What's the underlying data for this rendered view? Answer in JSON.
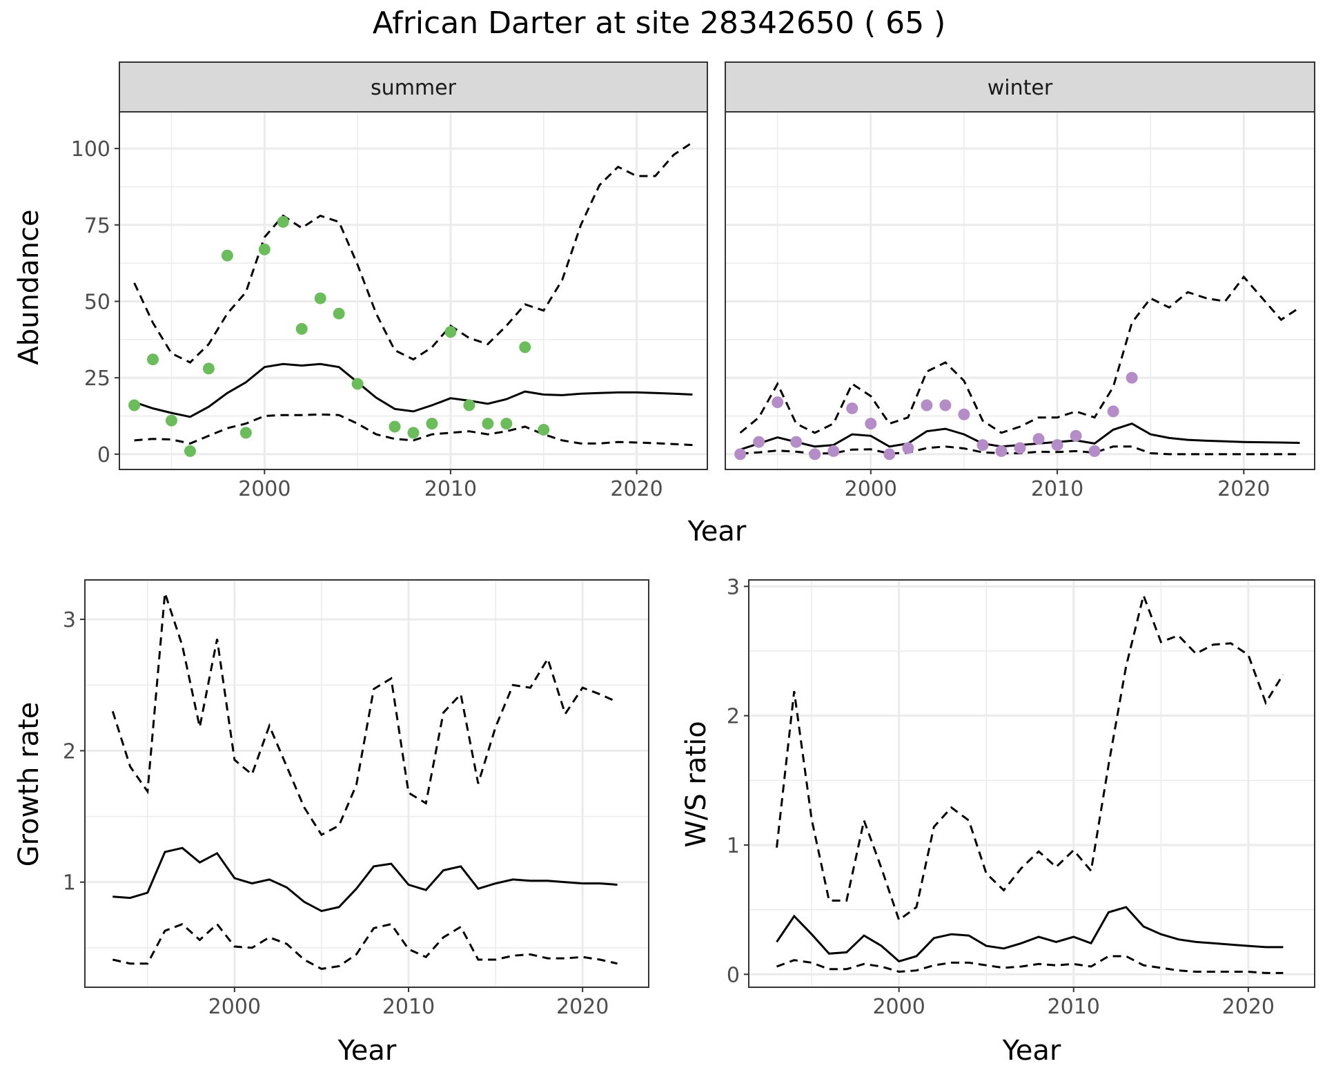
{
  "figure": {
    "title": "African Darter at site 28342650 ( 65 )",
    "colors": {
      "summer_points": "#6abd5a",
      "winter_points": "#b48cc8",
      "lines": "#000000",
      "grid": "#ebebeb",
      "strip_fill": "#d9d9d9",
      "panel_border": "#333333"
    }
  },
  "chart_data": [
    {
      "id": "abundance",
      "type": "line+scatter",
      "facets": [
        "summer",
        "winter"
      ],
      "xlabel": "Year",
      "ylabel": "Abundance",
      "xlim": [
        1992.2,
        2023.8
      ],
      "ylim": [
        -5,
        112
      ],
      "xticks": [
        2000,
        2010,
        2020
      ],
      "yticks": [
        0,
        25,
        50,
        75,
        100
      ],
      "grid": true,
      "x": [
        1993,
        1994,
        1995,
        1996,
        1997,
        1998,
        1999,
        2000,
        2001,
        2002,
        2003,
        2004,
        2005,
        2006,
        2007,
        2008,
        2009,
        2010,
        2011,
        2012,
        2013,
        2014,
        2015,
        2016,
        2017,
        2018,
        2019,
        2020,
        2021,
        2022,
        2023
      ],
      "panels": [
        {
          "facet": "summer",
          "observed": [
            {
              "x": 1993,
              "y": 16
            },
            {
              "x": 1994,
              "y": 31
            },
            {
              "x": 1995,
              "y": 11
            },
            {
              "x": 1996,
              "y": 1
            },
            {
              "x": 1997,
              "y": 28
            },
            {
              "x": 1998,
              "y": 65
            },
            {
              "x": 1999,
              "y": 7
            },
            {
              "x": 2000,
              "y": 67
            },
            {
              "x": 2001,
              "y": 76
            },
            {
              "x": 2002,
              "y": 41
            },
            {
              "x": 2003,
              "y": 51
            },
            {
              "x": 2004,
              "y": 46
            },
            {
              "x": 2005,
              "y": 23
            },
            {
              "x": 2007,
              "y": 9
            },
            {
              "x": 2008,
              "y": 7
            },
            {
              "x": 2009,
              "y": 10
            },
            {
              "x": 2010,
              "y": 40
            },
            {
              "x": 2011,
              "y": 16
            },
            {
              "x": 2012,
              "y": 10
            },
            {
              "x": 2013,
              "y": 10
            },
            {
              "x": 2014,
              "y": 35
            },
            {
              "x": 2015,
              "y": 8
            }
          ],
          "median": [
            17,
            15,
            13.5,
            12.2,
            15.5,
            20,
            23.5,
            28.5,
            29.5,
            29,
            29.5,
            28.5,
            23.5,
            18.5,
            14.8,
            14,
            16,
            18.3,
            17.5,
            16.5,
            18,
            20.5,
            19.5,
            19.3,
            19.8,
            20,
            20.2,
            20.2,
            20,
            19.8,
            19.5
          ],
          "lower": [
            4.5,
            5,
            4.8,
            3.5,
            6,
            8.5,
            10,
            12.5,
            12.8,
            12.8,
            13,
            12.8,
            10,
            6.5,
            5,
            4.5,
            6.5,
            7,
            7.5,
            6.5,
            7.5,
            9,
            6.5,
            4.5,
            3.5,
            3.5,
            4,
            3.8,
            3.6,
            3.3,
            3
          ],
          "upper": [
            56,
            43,
            33,
            30,
            36,
            46,
            53,
            71,
            78,
            74,
            78,
            76,
            62,
            46,
            34,
            31,
            35,
            42,
            38,
            36,
            42,
            49,
            47,
            57,
            75,
            88,
            94,
            91,
            91,
            98,
            102
          ]
        },
        {
          "facet": "winter",
          "observed": [
            {
              "x": 1993,
              "y": 0
            },
            {
              "x": 1994,
              "y": 4
            },
            {
              "x": 1995,
              "y": 17
            },
            {
              "x": 1996,
              "y": 4
            },
            {
              "x": 1997,
              "y": 0
            },
            {
              "x": 1998,
              "y": 1
            },
            {
              "x": 1999,
              "y": 15
            },
            {
              "x": 2000,
              "y": 10
            },
            {
              "x": 2001,
              "y": 0
            },
            {
              "x": 2002,
              "y": 2
            },
            {
              "x": 2003,
              "y": 16
            },
            {
              "x": 2004,
              "y": 16
            },
            {
              "x": 2005,
              "y": 13
            },
            {
              "x": 2006,
              "y": 3
            },
            {
              "x": 2007,
              "y": 1
            },
            {
              "x": 2008,
              "y": 2
            },
            {
              "x": 2009,
              "y": 5
            },
            {
              "x": 2010,
              "y": 3
            },
            {
              "x": 2011,
              "y": 6
            },
            {
              "x": 2012,
              "y": 1
            },
            {
              "x": 2013,
              "y": 14
            },
            {
              "x": 2014,
              "y": 25
            }
          ],
          "median": [
            1.5,
            3.5,
            5.5,
            4,
            2.5,
            3,
            6.5,
            6,
            2.5,
            3.5,
            7.5,
            8.3,
            6.5,
            3.5,
            2.5,
            3,
            3.5,
            4,
            4.5,
            3.5,
            8,
            10,
            6.5,
            5.3,
            4.7,
            4.4,
            4.2,
            4,
            3.9,
            3.8,
            3.7
          ],
          "lower": [
            0.2,
            0.6,
            1.2,
            0.8,
            0.2,
            0.3,
            1.5,
            1.6,
            0.2,
            0.5,
            2,
            2.5,
            1.9,
            0.6,
            0.3,
            0.3,
            0.8,
            0.7,
            1,
            0.5,
            2.5,
            2.5,
            0.3,
            0,
            0,
            0,
            0,
            0,
            0,
            0,
            0
          ],
          "upper": [
            7,
            12,
            23,
            10,
            7,
            10,
            23,
            19,
            10,
            12,
            27,
            30,
            24,
            11,
            7,
            9,
            12,
            12,
            14,
            12,
            22,
            43,
            51,
            48,
            53,
            51,
            50,
            58,
            51,
            44,
            48
          ]
        }
      ]
    },
    {
      "id": "growth_rate",
      "type": "line",
      "xlabel": "Year",
      "ylabel": "Growth rate",
      "xlim": [
        1991.4,
        2023.8
      ],
      "ylim": [
        0.2,
        3.3
      ],
      "xticks": [
        2000,
        2010,
        2020
      ],
      "yticks": [
        1,
        2,
        3
      ],
      "grid": true,
      "x": [
        1993,
        1994,
        1995,
        1996,
        1997,
        1998,
        1999,
        2000,
        2001,
        2002,
        2003,
        2004,
        2005,
        2006,
        2007,
        2008,
        2009,
        2010,
        2011,
        2012,
        2013,
        2014,
        2015,
        2016,
        2017,
        2018,
        2019,
        2020,
        2021,
        2022
      ],
      "median": [
        0.89,
        0.88,
        0.92,
        1.23,
        1.26,
        1.15,
        1.22,
        1.03,
        0.99,
        1.02,
        0.96,
        0.85,
        0.78,
        0.81,
        0.95,
        1.12,
        1.14,
        0.98,
        0.94,
        1.09,
        1.12,
        0.95,
        0.99,
        1.02,
        1.01,
        1.01,
        1,
        0.99,
        0.99,
        0.98
      ],
      "lower": [
        0.41,
        0.38,
        0.38,
        0.63,
        0.68,
        0.56,
        0.68,
        0.51,
        0.5,
        0.58,
        0.53,
        0.41,
        0.34,
        0.36,
        0.45,
        0.65,
        0.68,
        0.49,
        0.43,
        0.58,
        0.66,
        0.41,
        0.41,
        0.44,
        0.45,
        0.42,
        0.42,
        0.43,
        0.41,
        0.38
      ],
      "upper": [
        2.3,
        1.88,
        1.69,
        3.2,
        2.8,
        2.18,
        2.85,
        1.93,
        1.82,
        2.19,
        1.88,
        1.57,
        1.36,
        1.43,
        1.74,
        2.47,
        2.55,
        1.68,
        1.6,
        2.29,
        2.43,
        1.75,
        2.18,
        2.5,
        2.48,
        2.7,
        2.28,
        2.48,
        2.43,
        2.37
      ]
    },
    {
      "id": "ws_ratio",
      "type": "line",
      "xlabel": "Year",
      "ylabel": "W/S ratio",
      "xlim": [
        1991.4,
        2023.8
      ],
      "ylim": [
        -0.1,
        3.05
      ],
      "xticks": [
        2000,
        2010,
        2020
      ],
      "yticks": [
        0,
        1,
        2,
        3
      ],
      "grid": true,
      "x": [
        1993,
        1994,
        1995,
        1996,
        1997,
        1998,
        1999,
        2000,
        2001,
        2002,
        2003,
        2004,
        2005,
        2006,
        2007,
        2008,
        2009,
        2010,
        2011,
        2012,
        2013,
        2014,
        2015,
        2016,
        2017,
        2018,
        2019,
        2020,
        2021,
        2022
      ],
      "median": [
        0.25,
        0.45,
        0.31,
        0.16,
        0.17,
        0.3,
        0.22,
        0.1,
        0.14,
        0.28,
        0.31,
        0.3,
        0.22,
        0.2,
        0.24,
        0.29,
        0.25,
        0.29,
        0.24,
        0.48,
        0.52,
        0.37,
        0.31,
        0.27,
        0.25,
        0.24,
        0.23,
        0.22,
        0.21,
        0.21
      ],
      "lower": [
        0.06,
        0.11,
        0.09,
        0.04,
        0.04,
        0.08,
        0.06,
        0.02,
        0.03,
        0.07,
        0.09,
        0.09,
        0.07,
        0.05,
        0.06,
        0.08,
        0.07,
        0.08,
        0.06,
        0.14,
        0.14,
        0.07,
        0.05,
        0.03,
        0.02,
        0.02,
        0.02,
        0.02,
        0.01,
        0.01
      ],
      "upper": [
        0.98,
        2.19,
        1.2,
        0.57,
        0.57,
        1.19,
        0.82,
        0.42,
        0.52,
        1.14,
        1.29,
        1.19,
        0.78,
        0.65,
        0.82,
        0.95,
        0.83,
        0.96,
        0.8,
        1.62,
        2.38,
        2.93,
        2.57,
        2.62,
        2.48,
        2.55,
        2.56,
        2.47,
        2.1,
        2.32
      ]
    }
  ]
}
